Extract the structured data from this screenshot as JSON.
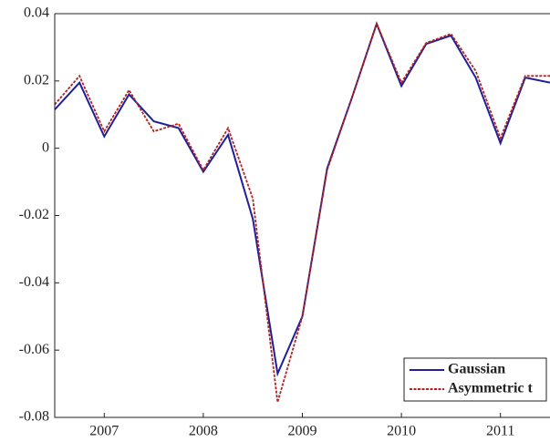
{
  "chart_data": {
    "type": "line",
    "x": [
      2006.5,
      2006.75,
      2007,
      2007.25,
      2007.5,
      2007.75,
      2008,
      2008.25,
      2008.5,
      2008.75,
      2009,
      2009.25,
      2009.5,
      2009.75,
      2010,
      2010.25,
      2010.5,
      2010.75,
      2011,
      2011.25,
      2011.5
    ],
    "series": [
      {
        "name": "Gaussian",
        "color": "#1f1f9a",
        "dash": false,
        "values": [
          0.0115,
          0.0195,
          0.0035,
          0.016,
          0.008,
          0.006,
          -0.007,
          0.004,
          -0.021,
          -0.067,
          -0.05,
          -0.006,
          0.015,
          0.037,
          0.0185,
          0.031,
          0.0335,
          0.021,
          0.0015,
          0.021,
          0.0195
        ]
      },
      {
        "name": "Asymmetric t",
        "color": "#b22222",
        "dash": true,
        "values": [
          0.013,
          0.0215,
          0.005,
          0.0173,
          0.005,
          0.0073,
          -0.0065,
          0.006,
          -0.015,
          -0.0755,
          -0.05,
          -0.0065,
          0.015,
          0.037,
          0.0195,
          0.0313,
          0.034,
          0.023,
          0.003,
          0.0215,
          0.0215
        ]
      }
    ],
    "xlim": [
      2006.5,
      2011.5
    ],
    "xticks": [
      2007,
      2008,
      2009,
      2010,
      2011
    ],
    "ylim": [
      -0.08,
      0.04
    ],
    "yticks": [
      -0.08,
      -0.06,
      -0.04,
      -0.02,
      0,
      0.02,
      0.04
    ],
    "legend": "lower right"
  }
}
